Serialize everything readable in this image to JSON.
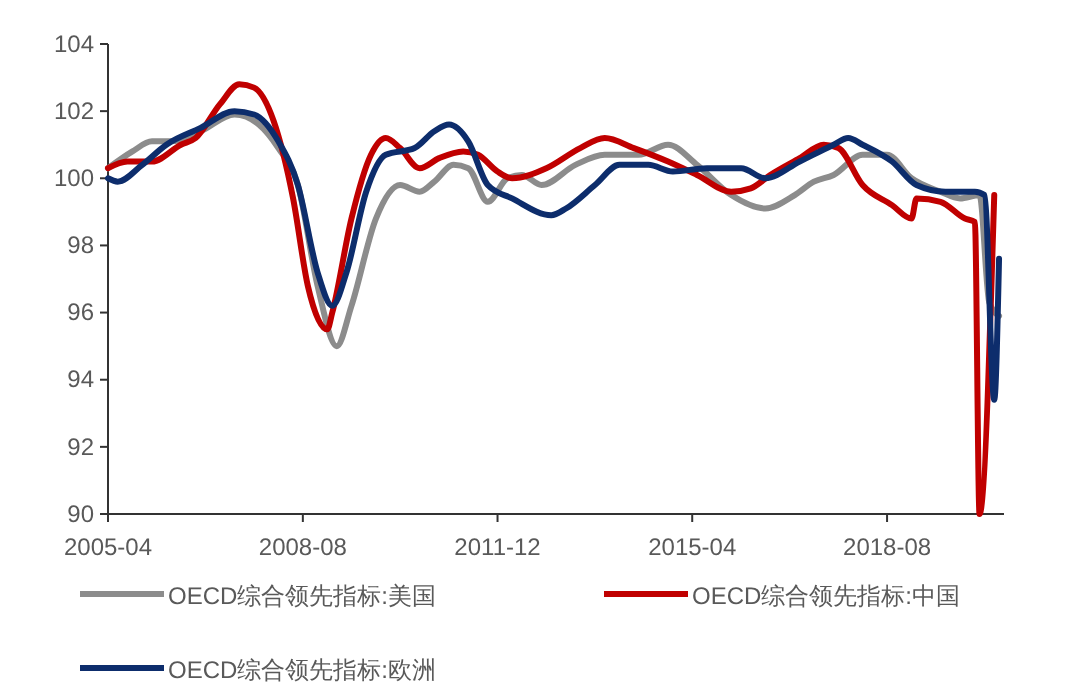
{
  "chart_data": {
    "type": "line",
    "legend": "bottom",
    "grid": false,
    "xlim": [
      "2005-04",
      "2020-08"
    ],
    "xticks": [
      "2005-04",
      "2008-08",
      "2011-12",
      "2015-04",
      "2018-08"
    ],
    "ylim": [
      90,
      104
    ],
    "yticks": [
      90,
      92,
      94,
      96,
      98,
      100,
      102,
      104
    ],
    "series": [
      {
        "name": "OECD综合领先指标:美国",
        "color": "#8c8c8c",
        "x": [
          "2005-04",
          "2005-09",
          "2006-01",
          "2006-05",
          "2006-11",
          "2007-06",
          "2007-11",
          "2008-03",
          "2008-07",
          "2008-11",
          "2009-03",
          "2009-06",
          "2009-11",
          "2010-04",
          "2010-08",
          "2010-11",
          "2011-03",
          "2011-06",
          "2011-10",
          "2012-02",
          "2012-05",
          "2012-09",
          "2013-04",
          "2013-10",
          "2014-05",
          "2014-11",
          "2015-05",
          "2015-12",
          "2016-07",
          "2017-01",
          "2017-05",
          "2017-09",
          "2018-03",
          "2018-08",
          "2019-01",
          "2019-07",
          "2019-11",
          "2020-03",
          "2020-05",
          "2020-07"
        ],
        "values": [
          100.3,
          100.8,
          101.1,
          101.1,
          101.4,
          101.9,
          101.6,
          100.9,
          99.8,
          96.8,
          95.0,
          96.2,
          98.8,
          99.8,
          99.6,
          99.9,
          100.4,
          100.3,
          99.3,
          100.0,
          100.1,
          99.8,
          100.4,
          100.7,
          100.7,
          101.0,
          100.4,
          99.5,
          99.1,
          99.5,
          99.9,
          100.1,
          100.7,
          100.7,
          100.0,
          99.6,
          99.4,
          99.5,
          96.3,
          95.9
        ]
      },
      {
        "name": "OECD综合领先指标:中国",
        "color": "#c00000",
        "x": [
          "2005-04",
          "2005-08",
          "2006-01",
          "2006-07",
          "2006-10",
          "2007-03",
          "2007-07",
          "2007-10",
          "2008-02",
          "2008-06",
          "2008-09",
          "2009-01",
          "2009-02",
          "2009-06",
          "2009-10",
          "2010-01",
          "2010-04",
          "2010-08",
          "2010-12",
          "2011-05",
          "2011-08",
          "2011-12",
          "2012-03",
          "2012-10",
          "2013-05",
          "2013-10",
          "2014-04",
          "2014-11",
          "2015-05",
          "2015-12",
          "2016-04",
          "2016-08",
          "2017-02",
          "2017-07",
          "2017-10",
          "2018-03",
          "2018-09",
          "2019-01",
          "2019-02",
          "2019-07",
          "2019-12",
          "2020-02",
          "2020-03",
          "2020-06"
        ],
        "values": [
          100.3,
          100.5,
          100.5,
          101.0,
          101.2,
          102.2,
          102.8,
          102.7,
          101.7,
          99.4,
          96.8,
          95.5,
          96.0,
          98.8,
          100.7,
          101.2,
          100.9,
          100.3,
          100.6,
          100.8,
          100.7,
          100.2,
          100.0,
          100.3,
          100.9,
          101.2,
          100.9,
          100.5,
          100.1,
          99.6,
          99.7,
          100.1,
          100.6,
          101.0,
          100.9,
          99.8,
          99.2,
          98.8,
          99.4,
          99.3,
          98.8,
          98.7,
          90.0,
          99.5
        ]
      },
      {
        "name": "OECD综合领先指标:欧洲",
        "color": "#0d2d6c",
        "x": [
          "2005-04",
          "2005-06",
          "2005-11",
          "2006-04",
          "2006-11",
          "2007-06",
          "2007-10",
          "2008-03",
          "2008-07",
          "2008-11",
          "2009-02",
          "2009-05",
          "2009-09",
          "2010-01",
          "2010-07",
          "2010-11",
          "2011-02",
          "2011-06",
          "2011-10",
          "2012-03",
          "2012-11",
          "2013-02",
          "2013-08",
          "2014-01",
          "2014-07",
          "2014-12",
          "2015-07",
          "2016-02",
          "2016-07",
          "2017-02",
          "2017-09",
          "2017-12",
          "2018-03",
          "2018-09",
          "2019-02",
          "2019-08",
          "2020-02",
          "2020-04",
          "2020-06",
          "2020-07"
        ],
        "values": [
          100.0,
          99.9,
          100.4,
          101.0,
          101.5,
          102.0,
          101.9,
          101.1,
          99.8,
          97.2,
          96.2,
          97.2,
          99.6,
          100.7,
          100.9,
          101.4,
          101.6,
          101.1,
          99.8,
          99.4,
          98.9,
          99.1,
          99.8,
          100.4,
          100.4,
          100.2,
          100.3,
          100.3,
          100.0,
          100.5,
          101.0,
          101.2,
          101.0,
          100.5,
          99.8,
          99.6,
          99.6,
          99.5,
          93.4,
          97.6
        ]
      }
    ]
  }
}
